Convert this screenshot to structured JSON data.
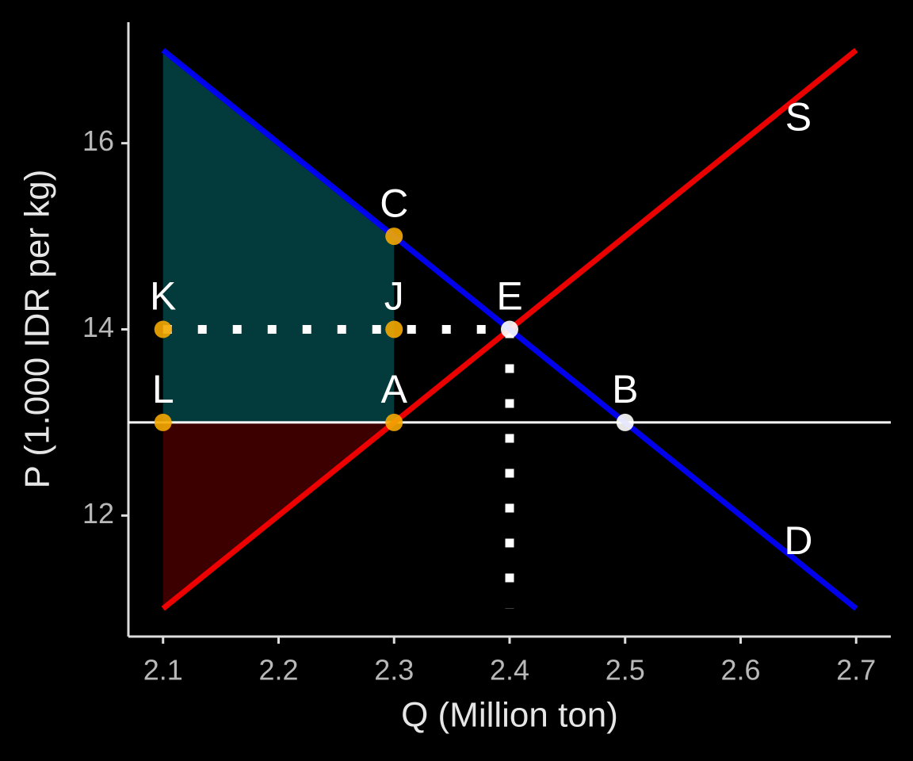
{
  "chart_data": {
    "type": "line",
    "xlabel": "Q (Million ton)",
    "ylabel": "P (1.000 IDR per kg)",
    "xlim": [
      2.07,
      2.73
    ],
    "ylim": [
      10.7,
      17.3
    ],
    "xticks": [
      2.1,
      2.2,
      2.3,
      2.4,
      2.5,
      2.6,
      2.7
    ],
    "yticks": [
      12,
      14,
      16
    ],
    "areas": [
      {
        "color": "#033b3d",
        "x": [
          2.1,
          2.3,
          2.3,
          2.1
        ],
        "values": [
          17,
          15,
          13,
          13
        ]
      },
      {
        "color": "#3d0000",
        "x": [
          2.1,
          2.3,
          2.1
        ],
        "values": [
          13,
          13,
          11
        ]
      }
    ],
    "hline": {
      "y": 13,
      "color": "#ffffff"
    },
    "dotted": [
      {
        "color": "#ffffff",
        "x": [
          2.1,
          2.4
        ],
        "values": [
          14,
          14
        ]
      },
      {
        "color": "#ffffff",
        "x": [
          2.4,
          2.4
        ],
        "values": [
          14,
          11
        ]
      }
    ],
    "series": [
      {
        "color": "#ff0000",
        "x": [
          2.1,
          2.7
        ],
        "values": [
          11,
          17
        ]
      },
      {
        "color": "#0000ff",
        "x": [
          2.1,
          2.7
        ],
        "values": [
          17,
          11
        ]
      }
    ],
    "annotations": [
      {
        "text": "S",
        "x": 2.65,
        "y": 16.25
      },
      {
        "text": "D",
        "x": 2.65,
        "y": 11.7
      }
    ],
    "points": [
      {
        "label": "C",
        "x": 2.3,
        "y": 15,
        "color": "#f5a800"
      },
      {
        "label": "K",
        "x": 2.1,
        "y": 14,
        "color": "#f5a800"
      },
      {
        "label": "J",
        "x": 2.3,
        "y": 14,
        "color": "#f5a800"
      },
      {
        "label": "L",
        "x": 2.1,
        "y": 13,
        "color": "#f5a800"
      },
      {
        "label": "A",
        "x": 2.3,
        "y": 13,
        "color": "#f5a800"
      },
      {
        "label": "E",
        "x": 2.4,
        "y": 14,
        "color": "#ffffff"
      },
      {
        "label": "B",
        "x": 2.5,
        "y": 13,
        "color": "#ffffff"
      }
    ]
  }
}
